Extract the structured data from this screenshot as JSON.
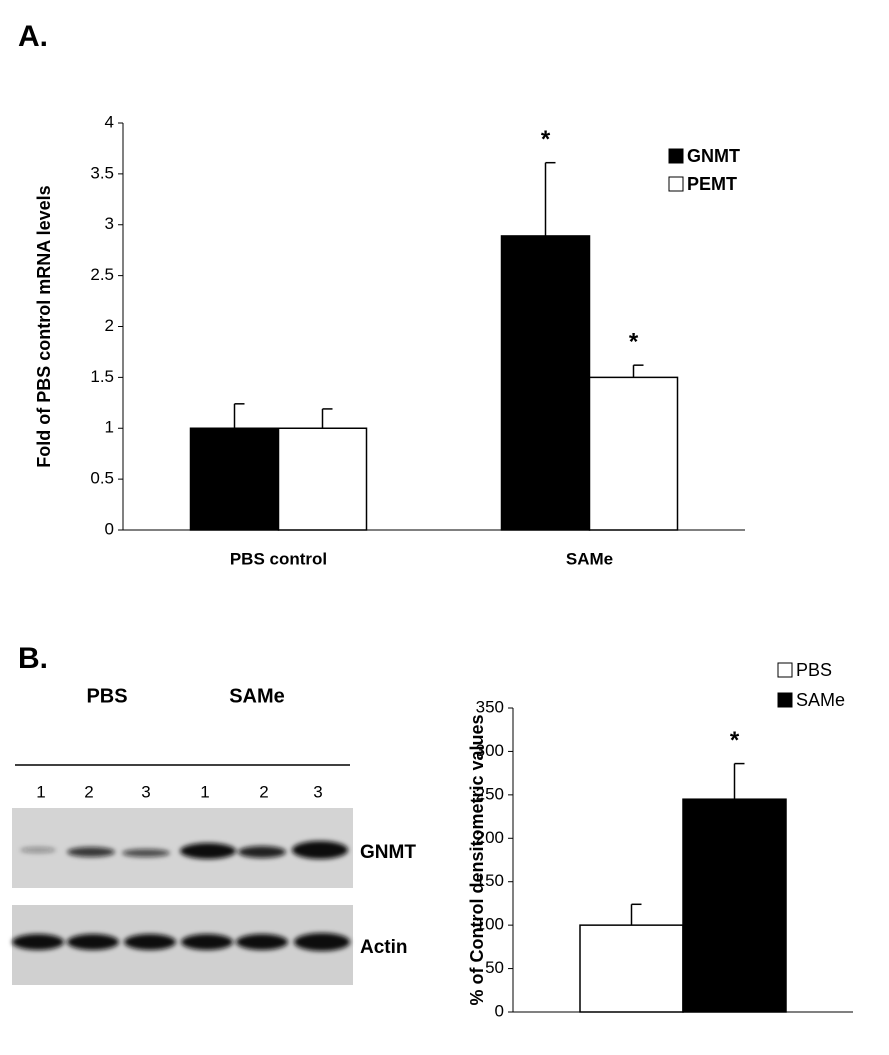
{
  "panel_labels": [
    "A.",
    "B."
  ],
  "blot": {
    "groups": [
      "PBS",
      "SAMe"
    ],
    "lanes": [
      "1",
      "2",
      "3",
      "1",
      "2",
      "3"
    ],
    "rows": [
      "GNMT",
      "Actin"
    ]
  },
  "chart_data": [
    {
      "type": "bar",
      "ylabel": "Fold of PBS control mRNA levels",
      "categories": [
        "PBS control",
        "SAMe"
      ],
      "series": [
        {
          "name": "GNMT",
          "color": "#000000",
          "values": [
            1.0,
            2.89
          ],
          "errors": [
            0.24,
            0.72
          ],
          "markers": [
            null,
            "*"
          ]
        },
        {
          "name": "PEMT",
          "color": "#ffffff",
          "values": [
            1.0,
            1.5
          ],
          "errors": [
            0.19,
            0.12
          ],
          "markers": [
            null,
            "*"
          ]
        }
      ],
      "ylim": [
        0,
        4
      ],
      "yticks": [
        0,
        0.5,
        1,
        1.5,
        2,
        2.5,
        3,
        3.5,
        4
      ],
      "legend": "upper right"
    },
    {
      "type": "bar",
      "ylabel": "% of Control densitometric values",
      "categories": [
        null
      ],
      "series": [
        {
          "name": "PBS",
          "color": "#ffffff",
          "values": [
            100
          ],
          "errors": [
            24
          ],
          "markers": [
            null
          ]
        },
        {
          "name": "SAMe",
          "color": "#000000",
          "values": [
            245
          ],
          "errors": [
            41
          ],
          "markers": [
            "*"
          ]
        }
      ],
      "ylim": [
        0,
        350
      ],
      "yticks": [
        0,
        50,
        100,
        150,
        200,
        250,
        300,
        350
      ],
      "legend": "upper right"
    }
  ]
}
